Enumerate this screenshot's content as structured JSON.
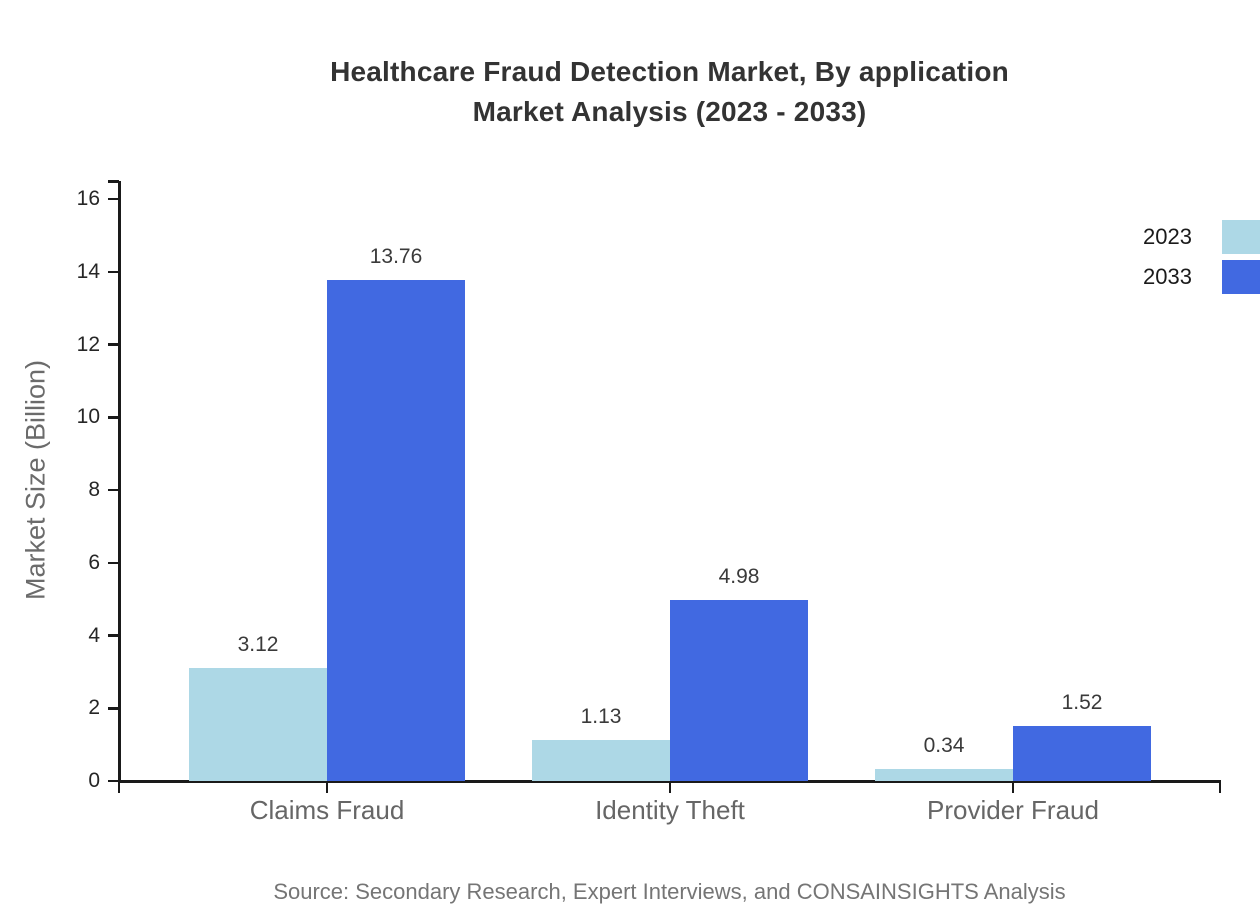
{
  "title": {
    "line1": "Healthcare Fraud Detection Market, By application",
    "line2": "Market Analysis (2023 - 2033)"
  },
  "source": "Source: Secondary Research, Expert Interviews, and CONSAINSIGHTS Analysis",
  "chart_data": {
    "type": "bar",
    "title": "Healthcare Fraud Detection Market, By application Market Analysis (2023 - 2033)",
    "categories": [
      "Claims Fraud",
      "Identity Theft",
      "Provider Fraud"
    ],
    "series": [
      {
        "name": "2023",
        "color": "#ADD8E6",
        "values": [
          3.12,
          1.13,
          0.34
        ]
      },
      {
        "name": "2033",
        "color": "#4169E1",
        "values": [
          13.76,
          4.98,
          1.52
        ]
      }
    ],
    "xlabel": "",
    "ylabel": "Market Size (Billion)",
    "ylim": [
      0,
      16
    ],
    "yticks": [
      0,
      2,
      4,
      6,
      8,
      10,
      12,
      14,
      16
    ],
    "grid": false,
    "legend_position": "top-right",
    "value_labels": true,
    "axis_color": "#1a1a1a"
  }
}
